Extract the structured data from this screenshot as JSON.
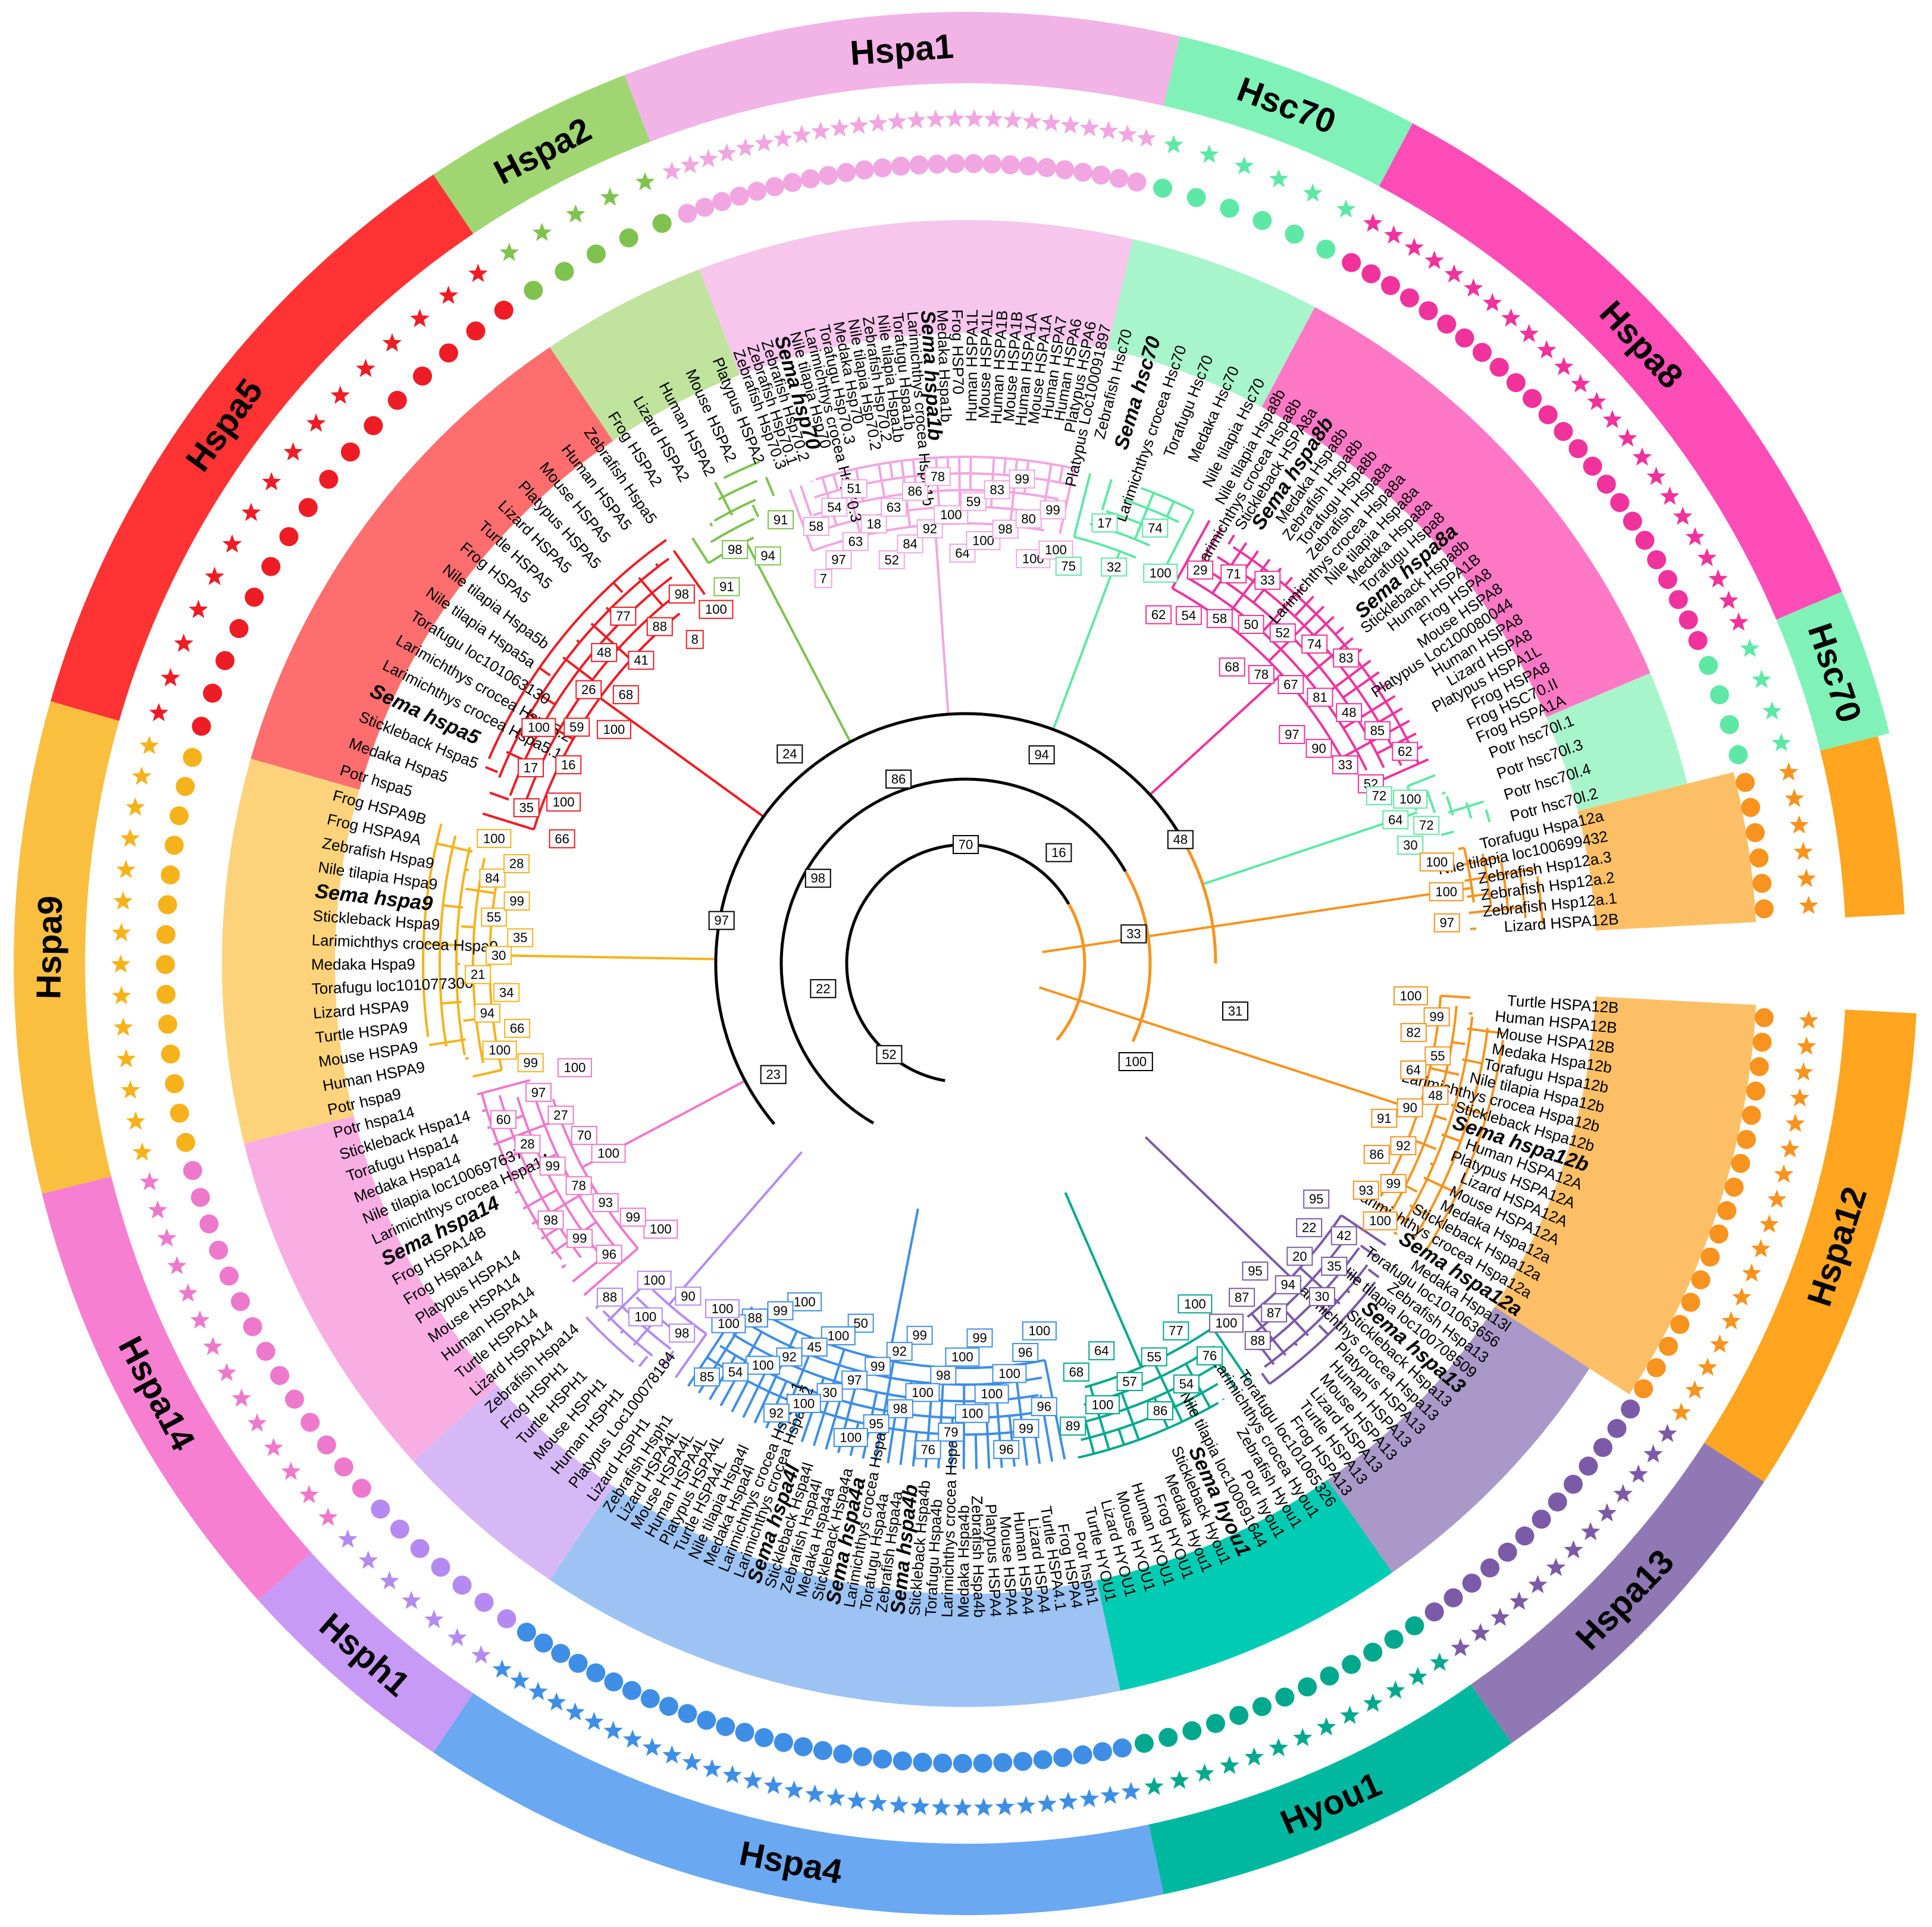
{
  "families": [
    {
      "id": "hspa1",
      "label": "Hspa1",
      "band": "#f2b3e6",
      "sector": "#f6c6ec",
      "marks": "#f1a6e2",
      "star": true
    },
    {
      "id": "hsc70a",
      "label": "Hsc70",
      "band": "#80f2b8",
      "sector": "#a8f5cb",
      "marks": "#5ee8a5",
      "star": true
    },
    {
      "id": "hspa8",
      "label": "Hspa8",
      "band": "#ff4db8",
      "sector": "#ff78c6",
      "marks": "#f0329d",
      "star": true
    },
    {
      "id": "hsc70b",
      "label": "Hsc70",
      "band": "#80f2b8",
      "sector": "#a8f5cb",
      "marks": "#5ee8a5",
      "star": true
    },
    {
      "id": "hspa12a",
      "label": "",
      "band": "#ffa51f",
      "sector": "#fdbf66",
      "marks": "#f7931e",
      "star": true
    },
    {
      "id": "hspa12",
      "label": "Hspa12",
      "band": "#ffa51f",
      "sector": "#fdbf66",
      "marks": "#f7931e",
      "star": true
    },
    {
      "id": "hspa13",
      "label": "Hspa13",
      "band": "#8f78b3",
      "sector": "#a998c8",
      "marks": "#7b5aa8",
      "star": true
    },
    {
      "id": "hyou1",
      "label": "Hyou1",
      "band": "#00b8a0",
      "sector": "#00cbb3",
      "marks": "#00a88d",
      "star": true
    },
    {
      "id": "hspa4",
      "label": "Hspa4",
      "band": "#6aa8f2",
      "sector": "#9cc3f3",
      "marks": "#3e8ee6",
      "star": true
    },
    {
      "id": "hsph1",
      "label": "Hsph1",
      "band": "#c79af5",
      "sector": "#d7b8f7",
      "marks": "#b58af0",
      "star": true
    },
    {
      "id": "hspa14",
      "label": "Hspa14",
      "band": "#f67fd1",
      "sector": "#f9aee3",
      "marks": "#ee79cc",
      "star": true
    },
    {
      "id": "hspa9",
      "label": "Hspa9",
      "band": "#fbbf40",
      "sector": "#fcd37a",
      "marks": "#f6b21b",
      "star": true
    },
    {
      "id": "hspa5",
      "label": "Hspa5",
      "band": "#ff3333",
      "sector": "#ff6e6e",
      "marks": "#ee1c25",
      "star": true
    },
    {
      "id": "hspa2",
      "label": "Hspa2",
      "band": "#9fd672",
      "sector": "#c0e39e",
      "marks": "#7fc24f",
      "star": true
    }
  ],
  "leaves": {
    "hspa1": [
      "Zebrafish Hsp70.3",
      "Zebrafish Hsp70.1",
      "Zebrafish Hsp70.2",
      "Sema hsp70",
      "Nile tilapia Hsp70",
      "Larimichthys crocea Hsp70.3",
      "Torafugu Hsp70.3",
      "Medaka Hsp70",
      "Nile tilapia Hsp70.2",
      "Zebrafish Hsp70.2",
      "Nile tilapia Hspa1b",
      "Torafugu Hspa1b",
      "Larimichthys crocea Hspa1b",
      "Sema hspa1b",
      "Medaka Hspa1b",
      "Frog HSP70",
      "Human HSPA1L",
      "Mouse HSPA1L",
      "Human HSPA1B",
      "Mouse HSPA1B",
      "Human HSPA1A",
      "Mouse HSPA1A",
      "Human HSPA7",
      "Human HSPA6",
      "Platypus HSPA6",
      "Platypus Loc100091897"
    ],
    "hsc70a": [
      "Zebrafish Hsc70",
      "Sema hsc70",
      "Larimichthys crocea Hsc70",
      "Torafugu Hsc70",
      "Medaka Hsc70",
      "Nile tilapia Hsc70"
    ],
    "hspa8": [
      "Nile tilapia Hspa8b",
      "Larimichthys crocea Hspa8b",
      "Stickleback HSPA8a",
      "Sema hspa8b",
      "Medaka Hspa8b",
      "Zebrafish Hspa8b",
      "Torafugu Hspa8b",
      "Zebrafish Hspa8a",
      "Larimichthys crocea Hspa8a",
      "Nile tilapia Hspa8a",
      "Medaka Hspa8a",
      "Torafugu Hspa8",
      "Sema hspa8a",
      "Stickleback Hspa8b",
      "Human HSPA1B",
      "Frog HSPA8",
      "Mouse HSPA8",
      "Platypus Loc100080044",
      "Human HSPA8",
      "Lizard HSPA8",
      "Platypus HSPA1L",
      "Frog HSPA8",
      "Frog HSC70.II",
      "Frog HSPA1A"
    ],
    "hsc70b": [
      "Potr hsc70l.1",
      "Potr hsc70l.3",
      "Potr hsc70l.4",
      "Potr hsc70l.2"
    ],
    "hspa12a": [
      "Torafugu Hspa12a",
      "Nile tilapia loc100699432",
      "Zebrafish Hsp12a.3",
      "Zebrafish Hsp12a.2",
      "Zebrafish Hsp12a.1",
      "Lizard HSPA12B"
    ],
    "hspa12": [
      "Turtle HSPA12B",
      "Human HSPA12B",
      "Mouse HSPA12B",
      "Medaka Hspa12b",
      "Torafugu Hspa12b",
      "Nile tilapia Hspa12b",
      "Larimichthys crocea Hspa12b",
      "Stickleback Hspa12b",
      "Sema hspa12b",
      "Human HSPA12A",
      "Platypus HSPA12A",
      "Lizard HSPA12A",
      "Mouse HSPA12A",
      "Medaka Hspa12a",
      "Stickleback Hspa12a",
      "Larimichthys crocea Hspa12a",
      "Sema hspa12a"
    ],
    "hspa13": [
      "Medaka Hspa13l",
      "Torafugu loc101063656",
      "Zebrafish Hspa13",
      "Nile tilapia loc100708509",
      "Sema hspa13",
      "Stickleback Hspa13",
      "Larimichthys crocea Hspa13",
      "Platypus HSPA13",
      "Human HSPA13",
      "Mouse HSPA13",
      "Lizard HSPA13",
      "Turtle HSPA13",
      "Frog HSPA13"
    ],
    "hyou1": [
      "Torafugu loc101065326",
      "Larimichthys crocea Hyou1",
      "Zebrafish Hyou1",
      "Potr hyou1",
      "Nile tilapia loc100691644",
      "Sema hyou1",
      "Stickleback Hyou1",
      "Medaka Hyou1",
      "Frog HYOU1",
      "Human HYOU1",
      "Mouse HYOU1",
      "Lizard HYOU1",
      "Turtle HYOU1"
    ],
    "hspa4": [
      "Potr hsph1",
      "Frog HSPA4",
      "Turtle HSPA4.1",
      "Lizard HSPA4",
      "Human HSPA4",
      "Mouse HSPA4",
      "Platypus HSPA4",
      "Zebrafish Hspa4b",
      "Medaka Hspa4b",
      "Larimichthys crocea Hspa4b",
      "Torafugu Hspa4b",
      "Stickleback Hspa4b",
      "Sema hspa4b",
      "Zebrafish Hspa4a",
      "Torafugu Hspa4a",
      "Larimichthys crocea Hspa4a",
      "Sema hspa4a",
      "Stickleback Hspa4a",
      "Medaka Hspa4a",
      "Zebrafish Hspa4l",
      "Stickleback Hspa4l",
      "Sema hspa4l",
      "Larimichthys crocea Hspa4l.2",
      "Larimichthys crocea Hspa4l.1",
      "Medaka Hspa4l",
      "Nile tilapia Hspa4l",
      "Turtle HSPA4L",
      "Platypus HSPA4L",
      "Human HSPA4L",
      "Mouse HSPA4L",
      "Lizard HSPA4L",
      "Zebrafish Hsph1"
    ],
    "hsph1": [
      "Lizard HSPH1",
      "Platypus Loc100078184",
      "Human HSPH1",
      "Mouse HSPH1",
      "Turtle HSPH1",
      "Frog HSPH1",
      "Zebrafish Hspa14"
    ],
    "hspa14": [
      "Lizard HSPA14",
      "Turtle HSPA14",
      "Human HSPA14",
      "Mouse HSPA14",
      "Platypus HSPA14",
      "Frog Hspa14",
      "Frog HSPA14B",
      "Sema hspa14",
      "Larimichthys crocea Hspa14",
      "Nile tilapia loc100697637",
      "Medaka Hspa14",
      "Torafugu Hspa14",
      "Stickleback Hspa14",
      "Potr hspa14"
    ],
    "hspa9": [
      "Potr hspa9",
      "Human HSPA9",
      "Mouse HSPA9",
      "Turtle HSPA9",
      "Lizard HSPA9",
      "Torafugu loc101077300",
      "Medaka Hspa9",
      "Larimichthys crocea Hspa9",
      "Stickleback Hspa9",
      "Sema hspa9",
      "Nile tilapia Hspa9",
      "Zebrafish Hspa9",
      "Frog HSPA9A",
      "Frog HSPA9B"
    ],
    "hspa5": [
      "Potr hspa5",
      "Medaka Hspa5",
      "Stickleback Hspa5",
      "Sema hspa5",
      "Larimichthys crocea Hspa5.1",
      "Larimichthys crocea Hspa5.2",
      "Torafugu loc101063130",
      "Nile tilapia Hspa5a",
      "Nile tilapia Hspa5b",
      "Frog HSPA5",
      "Turtle HSPA5",
      "Lizard HSPA5",
      "Platypus HSPA5",
      "Mouse HSPA5",
      "Human HSPA5",
      "Zebrafish Hspa5"
    ],
    "hspa2": [
      "Frog HSPA2",
      "Lizard HSPA2",
      "Human HSPA2",
      "Mouse HSPA2",
      "Platypus HSPA2"
    ]
  },
  "bootstrap": {
    "hspa1": [
      "7",
      "58",
      "97",
      "54",
      "63",
      "51",
      "18",
      "52",
      "63",
      "84",
      "86",
      "92",
      "78",
      "100",
      "64",
      "59",
      "100",
      "83",
      "98",
      "99",
      "80",
      "100",
      "99",
      "100"
    ],
    "hsc70a": [
      "75",
      "17",
      "32",
      "74",
      "100"
    ],
    "hspa8": [
      "62",
      "29",
      "54",
      "71",
      "58",
      "33",
      "50",
      "68",
      "52",
      "78",
      "74",
      "67",
      "83",
      "81",
      "97",
      "48",
      "90",
      "85",
      "33",
      "62",
      "52"
    ],
    "hsc70b": [
      "72",
      "100",
      "64",
      "72",
      "30"
    ],
    "hspa12a": [
      "100",
      "100",
      "97"
    ],
    "hspa12": [
      "100",
      "99",
      "82",
      "55",
      "64",
      "48",
      "90",
      "91",
      "92",
      "86",
      "99",
      "93",
      "100"
    ],
    "hspa13": [
      "95",
      "42",
      "22",
      "35",
      "20",
      "30",
      "94",
      "95",
      "87",
      "87",
      "88",
      "100"
    ],
    "hyou1": [
      "100",
      "76",
      "77",
      "54",
      "55",
      "86",
      "57",
      "64",
      "100",
      "68",
      "89"
    ],
    "hspa4": [
      "100",
      "96",
      "96",
      "99",
      "100",
      "96",
      "100",
      "99",
      "100",
      "100",
      "79",
      "98",
      "76",
      "100",
      "99",
      "98",
      "92",
      "95",
      "99",
      "100",
      "97",
      "50",
      "30",
      "100",
      "100",
      "45",
      "92",
      "92",
      "100",
      "100",
      "99",
      "54",
      "88",
      "85",
      "100"
    ],
    "hsph1": [
      "100",
      "98",
      "90",
      "100",
      "100",
      "88"
    ],
    "hspa14": [
      "100",
      "96",
      "99",
      "99",
      "93",
      "98",
      "78",
      "100",
      "99",
      "70",
      "28",
      "27",
      "60",
      "97",
      "100"
    ],
    "hspa9": [
      "99",
      "100",
      "66",
      "94",
      "34",
      "21",
      "30",
      "35",
      "55",
      "99",
      "84",
      "28",
      "100"
    ],
    "hspa5": [
      "66",
      "35",
      "100",
      "17",
      "16",
      "100",
      "59",
      "100",
      "26",
      "68",
      "48",
      "41",
      "77",
      "88",
      "8",
      "98",
      "100"
    ],
    "hspa2": [
      "91",
      "98",
      "94",
      "91"
    ],
    "backbone": [
      "52",
      "23",
      "22",
      "97",
      "98",
      "24",
      "86",
      "70",
      "94",
      "16",
      "48",
      "33",
      "31",
      "100"
    ]
  }
}
